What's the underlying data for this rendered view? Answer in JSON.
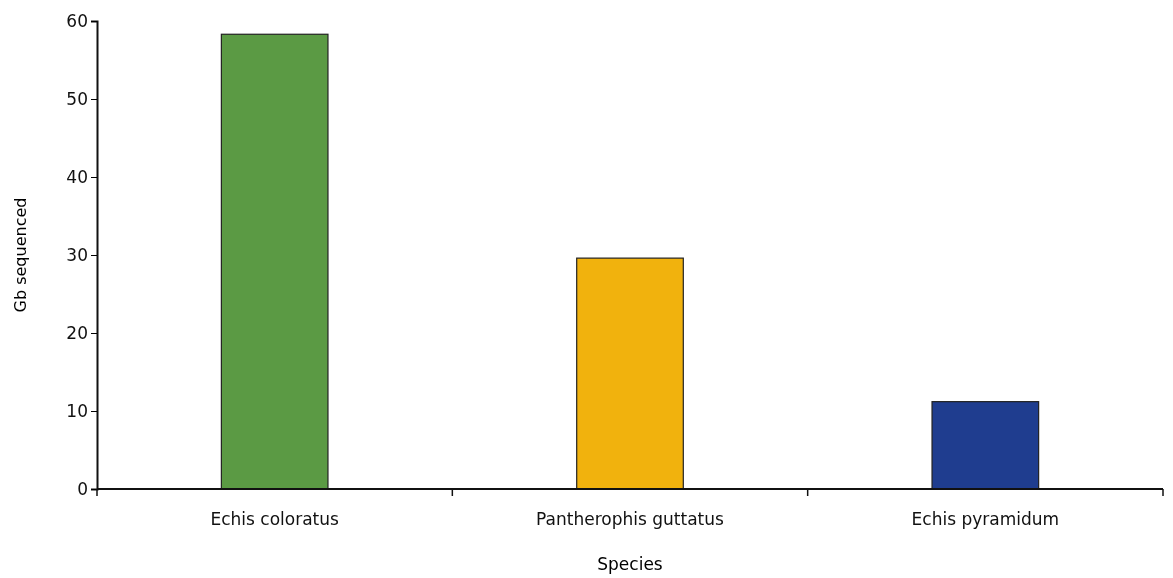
{
  "chart_data": {
    "type": "bar",
    "xlabel": "Species",
    "ylabel": "Gb sequenced",
    "categories": [
      "Echis coloratus",
      "Pantherophis guttatus",
      "Echis pyramidum"
    ],
    "values": [
      58.3,
      29.6,
      11.2
    ],
    "colors": [
      "#5b9a44",
      "#f1b20d",
      "#1f3d8f"
    ],
    "ylim": [
      0,
      60
    ],
    "yticks": [
      0,
      10,
      20,
      30,
      40,
      50,
      60
    ],
    "grid": false
  }
}
